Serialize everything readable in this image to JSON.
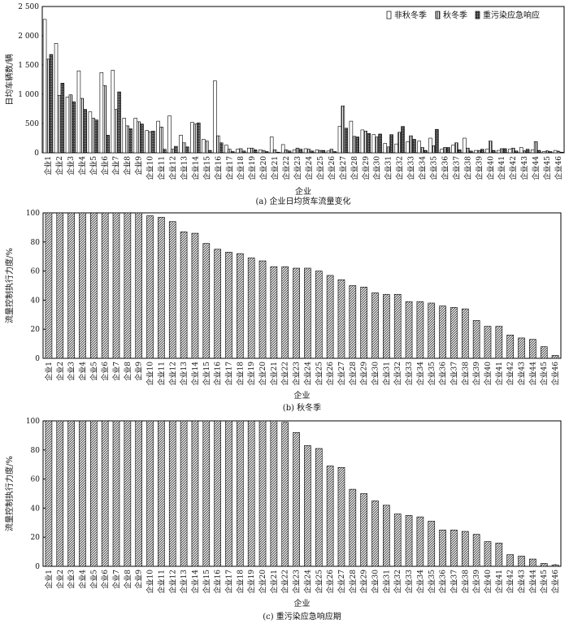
{
  "chart_data": [
    {
      "type": "bar",
      "caption": "(a)  企业日均货车流量变化",
      "xlabel": "企业",
      "ylabel": "日均车辆数/辆",
      "ylim": [
        0,
        2500
      ],
      "yticks": [
        "0",
        "500",
        "1 000",
        "1 500",
        "2 000",
        "2 500"
      ],
      "ytick_values": [
        0,
        500,
        1000,
        1500,
        2000,
        2500
      ],
      "legend_position": "top-right",
      "grid": false,
      "categories": [
        "企业1",
        "企业2",
        "企业3",
        "企业4",
        "企业5",
        "企业6",
        "企业7",
        "企业8",
        "企业9",
        "企业10",
        "企业11",
        "企业12",
        "企业13",
        "企业14",
        "企业15",
        "企业16",
        "企业17",
        "企业18",
        "企业19",
        "企业20",
        "企业21",
        "企业22",
        "企业23",
        "企业24",
        "企业25",
        "企业26",
        "企业27",
        "企业28",
        "企业29",
        "企业30",
        "企业31",
        "企业32",
        "企业33",
        "企业34",
        "企业35",
        "企业36",
        "企业37",
        "企业38",
        "企业39",
        "企业40",
        "企业41",
        "企业42",
        "企业43",
        "企业44",
        "企业45",
        "企业46"
      ],
      "series": [
        {
          "name": "非秋冬季",
          "pattern": "white",
          "values": [
            2280,
            1870,
            950,
            1400,
            700,
            1370,
            1410,
            590,
            590,
            380,
            540,
            630,
            300,
            520,
            230,
            1230,
            130,
            60,
            80,
            50,
            270,
            140,
            50,
            70,
            50,
            30,
            450,
            540,
            390,
            310,
            160,
            150,
            190,
            200,
            250,
            60,
            130,
            250,
            40,
            60,
            40,
            60,
            90,
            50,
            20,
            40
          ]
        },
        {
          "name": "秋冬季",
          "pattern": "hatched",
          "values": [
            1600,
            980,
            990,
            930,
            590,
            1150,
            740,
            460,
            530,
            360,
            440,
            60,
            170,
            490,
            200,
            290,
            60,
            70,
            80,
            40,
            50,
            50,
            80,
            60,
            40,
            60,
            800,
            280,
            370,
            270,
            100,
            350,
            290,
            90,
            120,
            90,
            170,
            80,
            40,
            200,
            70,
            80,
            30,
            190,
            30,
            20
          ]
        },
        {
          "name": "重污染应急响应",
          "pattern": "dark",
          "values": [
            1680,
            1190,
            870,
            740,
            560,
            300,
            1040,
            410,
            490,
            370,
            60,
            110,
            100,
            510,
            40,
            170,
            20,
            30,
            50,
            20,
            10,
            30,
            60,
            30,
            40,
            20,
            420,
            270,
            330,
            320,
            310,
            450,
            230,
            40,
            400,
            90,
            50,
            30,
            60,
            40,
            70,
            30,
            60,
            40,
            20,
            10
          ]
        }
      ]
    },
    {
      "type": "bar",
      "caption": "(b)  秋冬季",
      "xlabel": "企业",
      "ylabel": "流量控制执行力度/%",
      "ylim": [
        0,
        100
      ],
      "yticks": [
        "0",
        "20",
        "40",
        "60",
        "80",
        "100"
      ],
      "ytick_values": [
        0,
        20,
        40,
        60,
        80,
        100
      ],
      "grid": false,
      "categories": [
        "企业1",
        "企业2",
        "企业3",
        "企业4",
        "企业5",
        "企业6",
        "企业7",
        "企业8",
        "企业9",
        "企业10",
        "企业11",
        "企业12",
        "企业13",
        "企业14",
        "企业15",
        "企业16",
        "企业17",
        "企业18",
        "企业19",
        "企业20",
        "企业21",
        "企业22",
        "企业23",
        "企业24",
        "企业25",
        "企业26",
        "企业27",
        "企业28",
        "企业29",
        "企业30",
        "企业31",
        "企业32",
        "企业33",
        "企业34",
        "企业35",
        "企业36",
        "企业37",
        "企业38",
        "企业39",
        "企业40",
        "企业41",
        "企业42",
        "企业43",
        "企业44",
        "企业45",
        "企业46"
      ],
      "values": [
        100,
        100,
        100,
        100,
        100,
        100,
        100,
        100,
        100,
        98,
        97,
        94,
        87,
        86,
        79,
        75,
        73,
        72,
        69,
        67,
        63,
        63,
        62,
        62,
        60,
        57,
        54,
        50,
        49,
        45,
        44,
        44,
        39,
        39,
        38,
        36,
        35,
        34,
        26,
        22,
        22,
        16,
        14,
        13,
        8,
        2
      ]
    },
    {
      "type": "bar",
      "caption": "(c)  重污染应急响应期",
      "xlabel": "企业",
      "ylabel": "流量控制执行力度/%",
      "ylim": [
        0,
        100
      ],
      "yticks": [
        "0",
        "20",
        "40",
        "60",
        "80",
        "100"
      ],
      "ytick_values": [
        0,
        20,
        40,
        60,
        80,
        100
      ],
      "grid": false,
      "categories": [
        "企业1",
        "企业2",
        "企业3",
        "企业4",
        "企业5",
        "企业6",
        "企业7",
        "企业8",
        "企业9",
        "企业10",
        "企业11",
        "企业12",
        "企业13",
        "企业14",
        "企业15",
        "企业16",
        "企业17",
        "企业18",
        "企业19",
        "企业20",
        "企业21",
        "企业22",
        "企业23",
        "企业24",
        "企业25",
        "企业26",
        "企业27",
        "企业28",
        "企业29",
        "企业30",
        "企业31",
        "企业32",
        "企业33",
        "企业34",
        "企业35",
        "企业36",
        "企业37",
        "企业38",
        "企业39",
        "企业40",
        "企业41",
        "企业42",
        "企业43",
        "企业44",
        "企业45",
        "企业46"
      ],
      "values": [
        100,
        100,
        100,
        100,
        100,
        100,
        100,
        100,
        100,
        100,
        100,
        100,
        100,
        100,
        100,
        100,
        100,
        100,
        100,
        100,
        100,
        99,
        92,
        83,
        81,
        69,
        68,
        53,
        50,
        45,
        42,
        36,
        35,
        34,
        31,
        25,
        25,
        24,
        22,
        17,
        16,
        8,
        7,
        5,
        2,
        1
      ]
    }
  ]
}
